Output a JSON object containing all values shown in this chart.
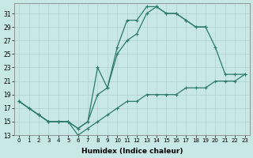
{
  "xlabel": "Humidex (Indice chaleur)",
  "bg_color": "#c8e8e8",
  "line_color": "#2d7a6a",
  "xlim": [
    -0.5,
    23.5
  ],
  "ylim": [
    13,
    32.5
  ],
  "xticks": [
    0,
    1,
    2,
    3,
    4,
    5,
    6,
    7,
    8,
    9,
    10,
    11,
    12,
    13,
    14,
    15,
    16,
    17,
    18,
    19,
    20,
    21,
    22,
    23
  ],
  "yticks": [
    13,
    15,
    17,
    19,
    21,
    23,
    25,
    27,
    29,
    31
  ],
  "line1": {
    "x": [
      0,
      1,
      2,
      3,
      4,
      5,
      6,
      7,
      8,
      9,
      10,
      11,
      12,
      13,
      14,
      15,
      16,
      17,
      18,
      19
    ],
    "y": [
      18,
      17,
      16,
      15,
      15,
      15,
      14,
      15,
      23,
      20,
      26,
      30,
      30,
      32,
      32,
      31,
      31,
      30,
      29,
      29
    ]
  },
  "line2": {
    "x": [
      0,
      2,
      3,
      4,
      5,
      6,
      7,
      8,
      9,
      10,
      11,
      12,
      13,
      14,
      15,
      16,
      17,
      18,
      19,
      20,
      21,
      22,
      23
    ],
    "y": [
      18,
      16,
      15,
      15,
      15,
      14,
      15,
      19,
      20,
      25,
      27,
      28,
      31,
      32,
      31,
      31,
      30,
      29,
      29,
      26,
      22,
      22,
      22
    ]
  },
  "line3": {
    "x": [
      0,
      1,
      2,
      3,
      4,
      5,
      6,
      7,
      8,
      9,
      10,
      11,
      12,
      13,
      14,
      15,
      16,
      17,
      18,
      19,
      20,
      21,
      22,
      23
    ],
    "y": [
      18,
      17,
      16,
      15,
      15,
      15,
      13,
      14,
      15,
      16,
      17,
      18,
      18,
      19,
      19,
      19,
      19,
      20,
      20,
      20,
      21,
      21,
      21,
      22
    ]
  }
}
